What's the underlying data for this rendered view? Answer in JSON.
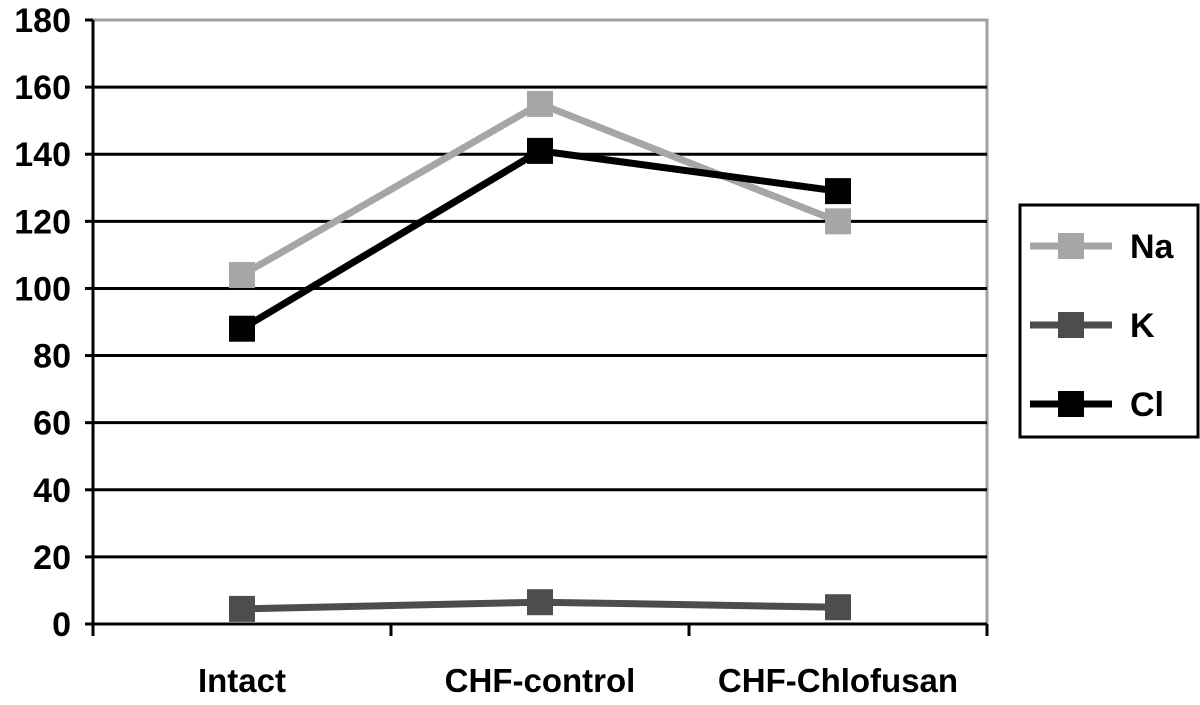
{
  "chart_data": {
    "type": "line",
    "title": "",
    "xlabel": "",
    "ylabel": "",
    "categories": [
      "Intact",
      "CHF-control",
      "CHF-Chlofusan"
    ],
    "ylim": [
      0,
      180
    ],
    "ytick_step": 20,
    "yticks": [
      "0",
      "20",
      "40",
      "60",
      "80",
      "100",
      "120",
      "140",
      "160",
      "180"
    ],
    "grid": true,
    "legend_position": "right",
    "series": [
      {
        "name": "Na",
        "values": [
          104,
          155,
          120
        ],
        "color": "#a6a6a6"
      },
      {
        "name": "K",
        "values": [
          4.5,
          6.5,
          5
        ],
        "color": "#4d4d4d"
      },
      {
        "name": "Cl",
        "values": [
          88,
          141,
          129
        ],
        "color": "#000000"
      }
    ]
  }
}
